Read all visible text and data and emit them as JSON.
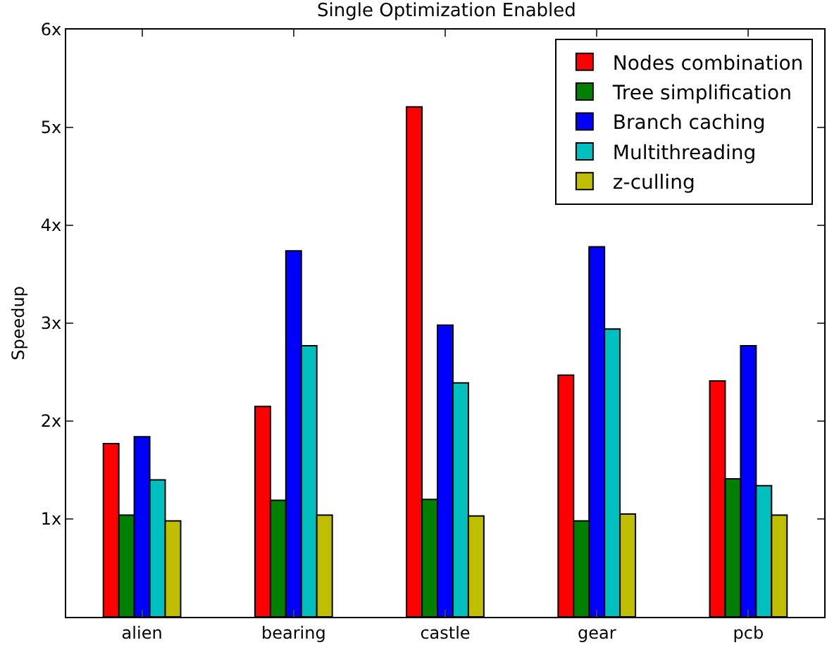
{
  "chart_data": {
    "type": "bar",
    "title": "Single Optimization Enabled",
    "ylabel": "Speedup",
    "categories": [
      "alien",
      "bearing",
      "castle",
      "gear",
      "pcb"
    ],
    "series": [
      {
        "name": "Nodes combination",
        "color": "#ff0000",
        "values": [
          1.77,
          2.15,
          5.21,
          2.47,
          2.41
        ]
      },
      {
        "name": "Tree simplification",
        "color": "#008000",
        "values": [
          1.04,
          1.19,
          1.2,
          0.98,
          1.41
        ]
      },
      {
        "name": "Branch caching",
        "color": "#0000ff",
        "values": [
          1.84,
          3.74,
          2.98,
          3.78,
          2.77
        ]
      },
      {
        "name": "Multithreading",
        "color": "#00bfbf",
        "values": [
          1.4,
          2.77,
          2.39,
          2.94,
          1.34
        ]
      },
      {
        "name": "z-culling",
        "color": "#bfbf00",
        "values": [
          0.98,
          1.04,
          1.03,
          1.05,
          1.04
        ]
      }
    ],
    "ylim": [
      0,
      6
    ],
    "yticks": [
      {
        "value": 1,
        "label": "1x"
      },
      {
        "value": 2,
        "label": "2x"
      },
      {
        "value": 3,
        "label": "3x"
      },
      {
        "value": 4,
        "label": "4x"
      },
      {
        "value": 5,
        "label": "5x"
      },
      {
        "value": 6,
        "label": "6x"
      }
    ],
    "grid": false,
    "legend": "top right"
  }
}
